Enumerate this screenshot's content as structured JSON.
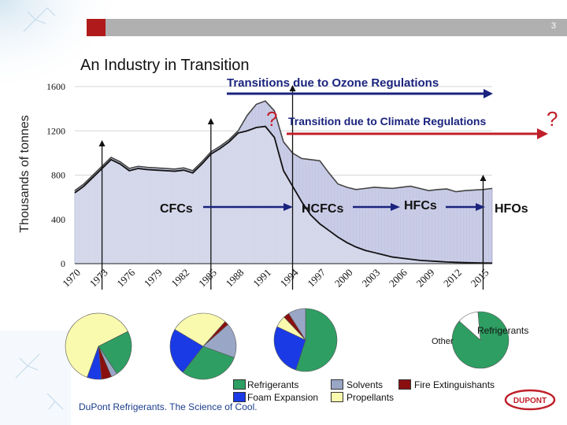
{
  "slide": {
    "page_number": "3",
    "title": "An Industry in Transition",
    "footer_brand": "DuPont Refrigerants. The Science of Cool.",
    "logo_text": "DUPONT"
  },
  "chart_data": {
    "type": "area",
    "ylabel": "Thousands of tonnes",
    "ylim": [
      0,
      1600
    ],
    "y_ticks": [
      "0",
      "400",
      "800",
      "1200",
      "1600"
    ],
    "x_tick_labels": [
      "1970",
      "1973",
      "1976",
      "1979",
      "1982",
      "1985",
      "1988",
      "1991",
      "1994",
      "1997",
      "2000",
      "2003",
      "2006",
      "2009",
      "2012",
      "2015"
    ],
    "x": [
      1970,
      1971,
      1972,
      1973,
      1974,
      1975,
      1976,
      1977,
      1978,
      1979,
      1980,
      1981,
      1982,
      1983,
      1984,
      1985,
      1986,
      1987,
      1988,
      1989,
      1990,
      1991,
      1992,
      1993,
      1994,
      1995,
      1996,
      1997,
      1998,
      1999,
      2000,
      2001,
      2002,
      2003,
      2004,
      2005,
      2006,
      2007,
      2008,
      2009,
      2010,
      2011,
      2012,
      2013,
      2014,
      2015,
      2016
    ],
    "total": [
      660,
      720,
      800,
      880,
      960,
      920,
      860,
      880,
      870,
      865,
      860,
      855,
      865,
      840,
      920,
      1010,
      1060,
      1120,
      1200,
      1340,
      1440,
      1470,
      1380,
      1100,
      1000,
      950,
      940,
      930,
      820,
      720,
      690,
      670,
      680,
      690,
      685,
      680,
      690,
      700,
      680,
      660,
      670,
      675,
      650,
      660,
      665,
      670,
      680
    ],
    "cfc": [
      640,
      700,
      780,
      860,
      940,
      900,
      840,
      860,
      850,
      845,
      840,
      835,
      845,
      820,
      900,
      990,
      1040,
      1100,
      1180,
      1200,
      1230,
      1240,
      1140,
      840,
      700,
      560,
      440,
      360,
      300,
      240,
      190,
      150,
      120,
      100,
      80,
      60,
      50,
      40,
      30,
      25,
      20,
      15,
      12,
      10,
      8,
      6,
      5
    ],
    "annotations": {
      "ozone": "Transitions due to Ozone Regulations",
      "climate": "Transition due to Climate Regulations",
      "q1": "?",
      "q2": "?",
      "cfcs": "CFCs",
      "hcfcs": "HCFCs",
      "hfcs": "HFCs",
      "hfos": "HFOs"
    },
    "pies": [
      {
        "slices": [
          {
            "category": "Propellants",
            "value": 62
          },
          {
            "category": "Refrigerants",
            "value": 23
          },
          {
            "category": "Solvents",
            "value": 3
          },
          {
            "category": "Fire Extinguishants",
            "value": 5
          },
          {
            "category": "Foam Expansion",
            "value": 7
          }
        ]
      },
      {
        "slices": [
          {
            "category": "Refrigerants",
            "value": 30
          },
          {
            "category": "Foam Expansion",
            "value": 23
          },
          {
            "category": "Propellants",
            "value": 28
          },
          {
            "category": "Fire Extinguishants",
            "value": 2
          },
          {
            "category": "Solvents",
            "value": 17
          }
        ]
      },
      {
        "slices": [
          {
            "category": "Refrigerants",
            "value": 55
          },
          {
            "category": "Foam Expansion",
            "value": 27
          },
          {
            "category": "Propellants",
            "value": 6
          },
          {
            "category": "Fire Extinguishants",
            "value": 3
          },
          {
            "category": "Solvents",
            "value": 9
          }
        ]
      },
      {
        "slices": [
          {
            "category": "Refrigerants",
            "value": 88
          },
          {
            "category": "Other",
            "value": 12
          }
        ],
        "labels": {
          "other": "Other",
          "refrigerants": "Refrigerants"
        }
      }
    ],
    "legend": [
      {
        "name": "Refrigerants",
        "color": "#2e9e62"
      },
      {
        "name": "Foam Expansion",
        "color": "#1a3ae6"
      },
      {
        "name": "Solvents",
        "color": "#9aa6c6"
      },
      {
        "name": "Propellants",
        "color": "#fafaae"
      },
      {
        "name": "Fire Extinguishants",
        "color": "#8a1010"
      }
    ],
    "colors": {
      "accent_red": "#c0202a",
      "arrow_navy": "#1a237e",
      "area_fill": "#c9cce6",
      "line_dark": "#333333"
    }
  }
}
